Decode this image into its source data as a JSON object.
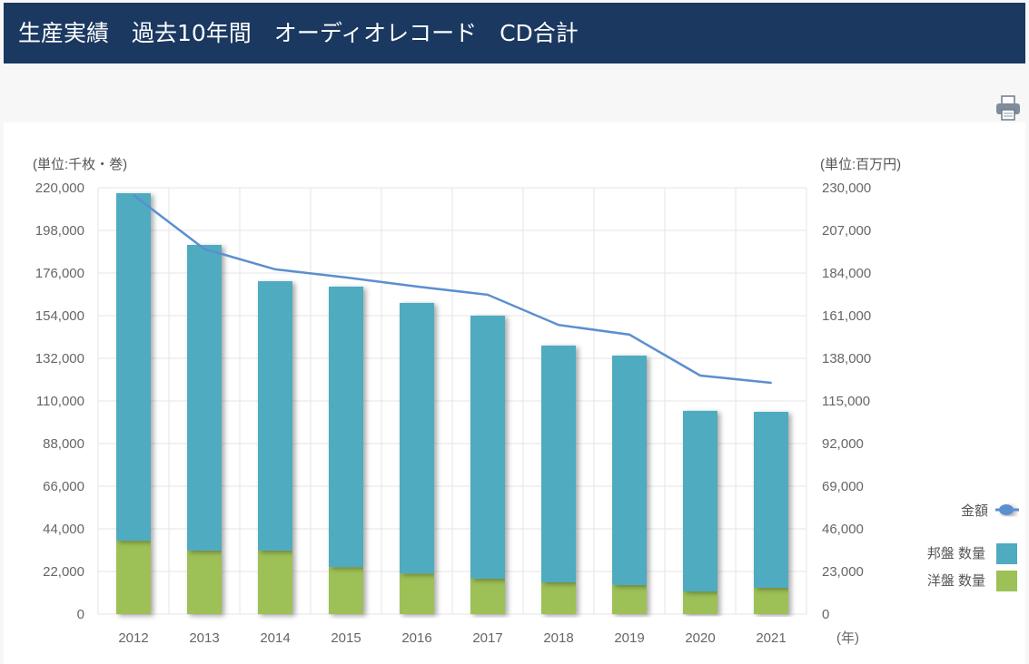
{
  "header": {
    "title": "生産実績　過去10年間　オーディオレコード　CD合計"
  },
  "toolbar": {
    "print_icon": "printer-icon"
  },
  "chart_data": {
    "type": "bar",
    "stacked": true,
    "categories": [
      "2012",
      "2013",
      "2014",
      "2015",
      "2016",
      "2017",
      "2018",
      "2019",
      "2020",
      "2021"
    ],
    "series": [
      {
        "name": "洋盤 数量",
        "axis": "left",
        "color": "#9dc156",
        "values": [
          37900,
          32800,
          32800,
          24300,
          21000,
          18300,
          16400,
          15000,
          11700,
          13600
        ]
      },
      {
        "name": "邦盤 数量",
        "axis": "left",
        "color": "#4fabc0",
        "values": [
          179300,
          157700,
          139000,
          144700,
          139600,
          135700,
          122200,
          118400,
          93200,
          90800
        ]
      },
      {
        "name": "金額",
        "type": "line",
        "axis": "right",
        "color": "#5b8fd0",
        "values": [
          226000,
          197000,
          186000,
          181600,
          176700,
          172300,
          156000,
          150800,
          128700,
          124800
        ]
      }
    ],
    "ylabel": "(単位:千枚・巻)",
    "ylabel_right": "(単位:百万円)",
    "xlabel": "(年)",
    "ylim": [
      0,
      220000
    ],
    "ylim_right": [
      0,
      230000
    ],
    "yticks": [
      "0",
      "22,000",
      "44,000",
      "66,000",
      "88,000",
      "110,000",
      "132,000",
      "154,000",
      "176,000",
      "198,000",
      "220,000"
    ],
    "yticks_right": [
      "0",
      "23,000",
      "46,000",
      "69,000",
      "92,000",
      "115,000",
      "138,000",
      "161,000",
      "184,000",
      "207,000",
      "230,000"
    ],
    "grid": true,
    "legend": "right"
  }
}
